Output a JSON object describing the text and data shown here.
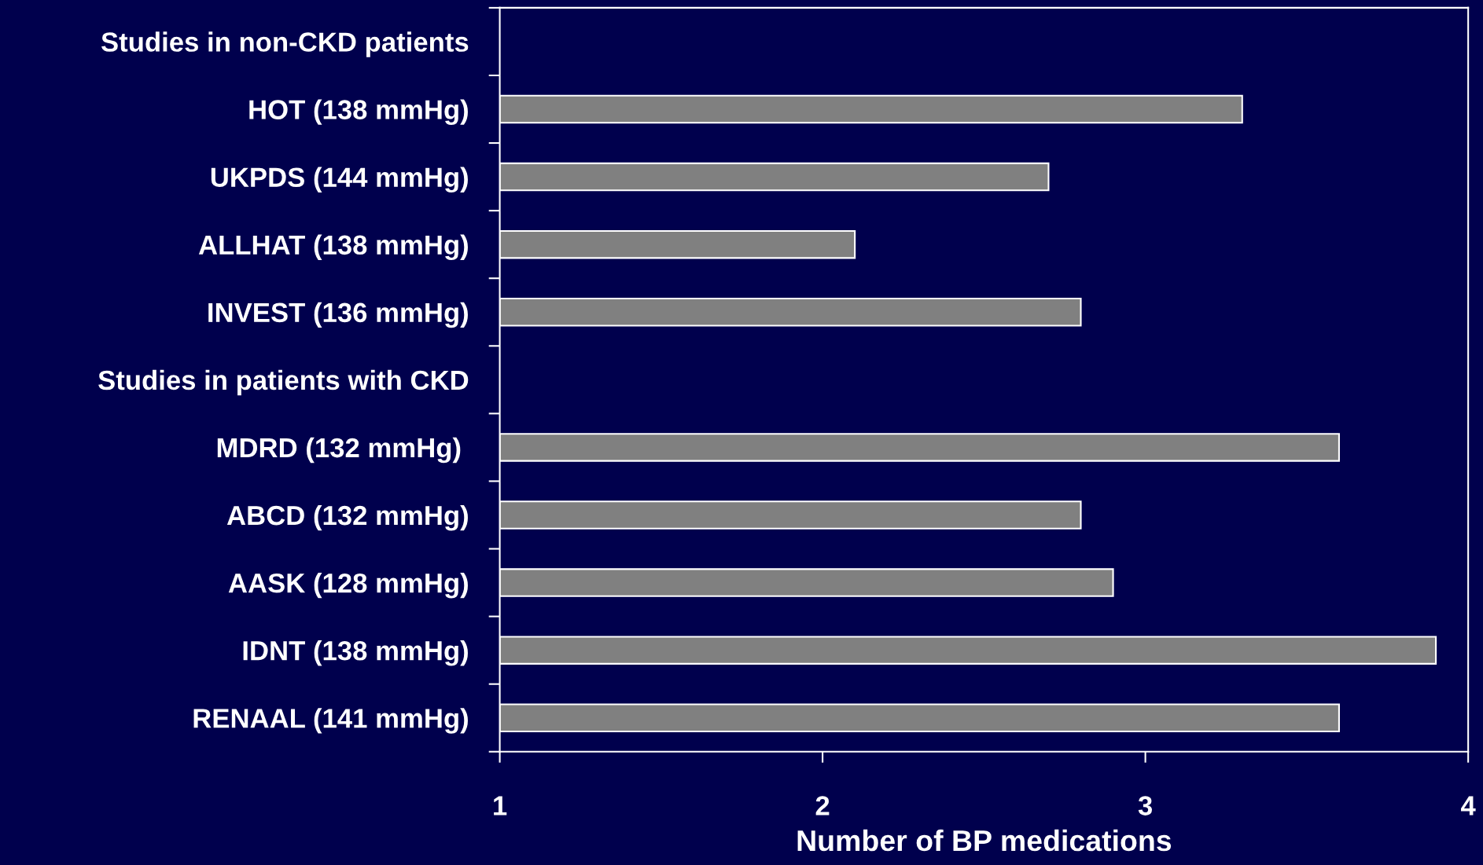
{
  "chart_data": {
    "type": "bar",
    "orientation": "horizontal",
    "xlabel": "Number of BP medications",
    "categories": [
      "Studies in non-CKD patients",
      "HOT (138 mmHg)",
      "UKPDS (144 mmHg)",
      "ALLHAT (138 mmHg)",
      "INVEST (136 mmHg)",
      "Studies in patients with CKD",
      "MDRD (132 mmHg) ",
      "ABCD (132 mmHg)",
      "AASK (128 mmHg)",
      "IDNT (138 mmHg)",
      "RENAAL (141 mmHg)"
    ],
    "values": [
      null,
      3.3,
      2.7,
      2.1,
      2.8,
      null,
      3.6,
      2.8,
      2.9,
      3.9,
      3.6
    ],
    "color": "#808080",
    "xlim": [
      1,
      4
    ],
    "xticks": [
      1,
      2,
      3,
      4
    ],
    "grid": false,
    "legend": false
  }
}
